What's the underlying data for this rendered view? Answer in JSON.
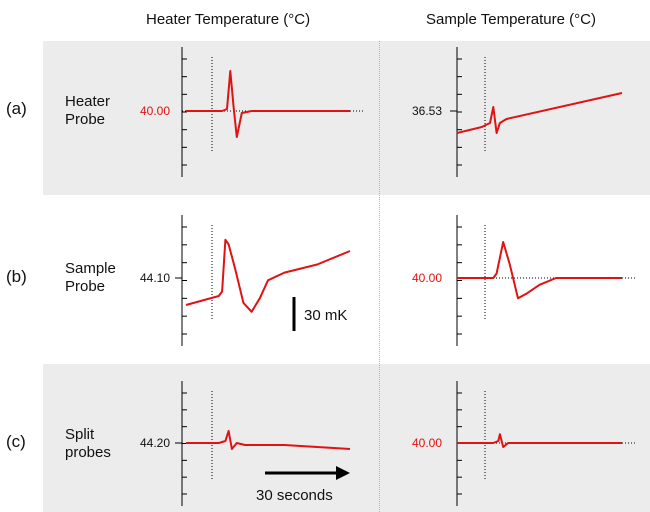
{
  "columns": [
    "Heater Temperature  (°C)",
    "Sample Temperature  (°C)"
  ],
  "rows": [
    {
      "letter": "(a)",
      "name": [
        "Heater",
        "Probe"
      ]
    },
    {
      "letter": "(b)",
      "name": [
        "Sample",
        "Probe"
      ]
    },
    {
      "letter": "(c)",
      "name": [
        "Split",
        "probes"
      ]
    }
  ],
  "scale_bar": {
    "value_label": "30 mK",
    "time_label": "30 seconds",
    "temperature_mK": 30,
    "time_s": 30
  },
  "colors": {
    "trace": "#e11212",
    "shaded_band": "#ececec",
    "red_label": "#e11212",
    "black_label": "#111111"
  },
  "chart_data": [
    {
      "type": "line",
      "row": "(a)",
      "column": "Heater Temperature (°C)",
      "y_label": "40.00",
      "y_label_color": "red",
      "baseline": true,
      "x": [
        0,
        0.22,
        0.25,
        0.27,
        0.29,
        0.31,
        0.34,
        0.4,
        1
      ],
      "y": [
        0,
        0,
        0.05,
        1,
        0.1,
        -0.65,
        -0.05,
        0,
        0
      ]
    },
    {
      "type": "line",
      "row": "(a)",
      "column": "Sample Temperature (°C)",
      "y_label": "36.53",
      "y_label_color": "black",
      "baseline": false,
      "x": [
        0,
        0.15,
        0.2,
        0.22,
        0.24,
        0.26,
        0.3,
        1
      ],
      "y": [
        -0.55,
        -0.4,
        -0.3,
        0.1,
        -0.55,
        -0.3,
        -0.2,
        0.45
      ]
    },
    {
      "type": "line",
      "row": "(b)",
      "column": "Heater Temperature (°C)",
      "y_label": "44.10",
      "y_label_color": "black",
      "baseline": false,
      "x": [
        0,
        0.2,
        0.22,
        0.24,
        0.26,
        0.3,
        0.35,
        0.4,
        0.45,
        0.5,
        0.6,
        0.8,
        1
      ],
      "y": [
        -0.6,
        -0.4,
        -0.3,
        0.85,
        0.75,
        0.2,
        -0.55,
        -0.75,
        -0.45,
        -0.05,
        0.12,
        0.3,
        0.6
      ]
    },
    {
      "type": "line",
      "row": "(b)",
      "column": "Sample Temperature (°C)",
      "y_label": "40.00",
      "y_label_color": "red",
      "baseline": true,
      "x": [
        0,
        0.22,
        0.24,
        0.28,
        0.32,
        0.37,
        0.42,
        0.5,
        0.6,
        0.7,
        1
      ],
      "y": [
        0,
        0,
        0.1,
        0.8,
        0.3,
        -0.45,
        -0.35,
        -0.15,
        0,
        0,
        0
      ]
    },
    {
      "type": "line",
      "row": "(c)",
      "column": "Heater Temperature (°C)",
      "y_label": "44.20",
      "y_label_color": "black",
      "baseline": false,
      "x": [
        0,
        0.2,
        0.24,
        0.26,
        0.28,
        0.31,
        0.36,
        0.6,
        1
      ],
      "y": [
        0,
        0,
        0.05,
        0.3,
        -0.15,
        0,
        -0.05,
        -0.05,
        -0.15
      ]
    },
    {
      "type": "line",
      "row": "(c)",
      "column": "Sample Temperature (°C)",
      "y_label": "40.00",
      "y_label_color": "red",
      "baseline": true,
      "x": [
        0,
        0.22,
        0.25,
        0.26,
        0.28,
        0.31,
        0.35,
        1
      ],
      "y": [
        0,
        0,
        0.05,
        0.22,
        -0.1,
        0,
        0,
        0
      ]
    }
  ]
}
